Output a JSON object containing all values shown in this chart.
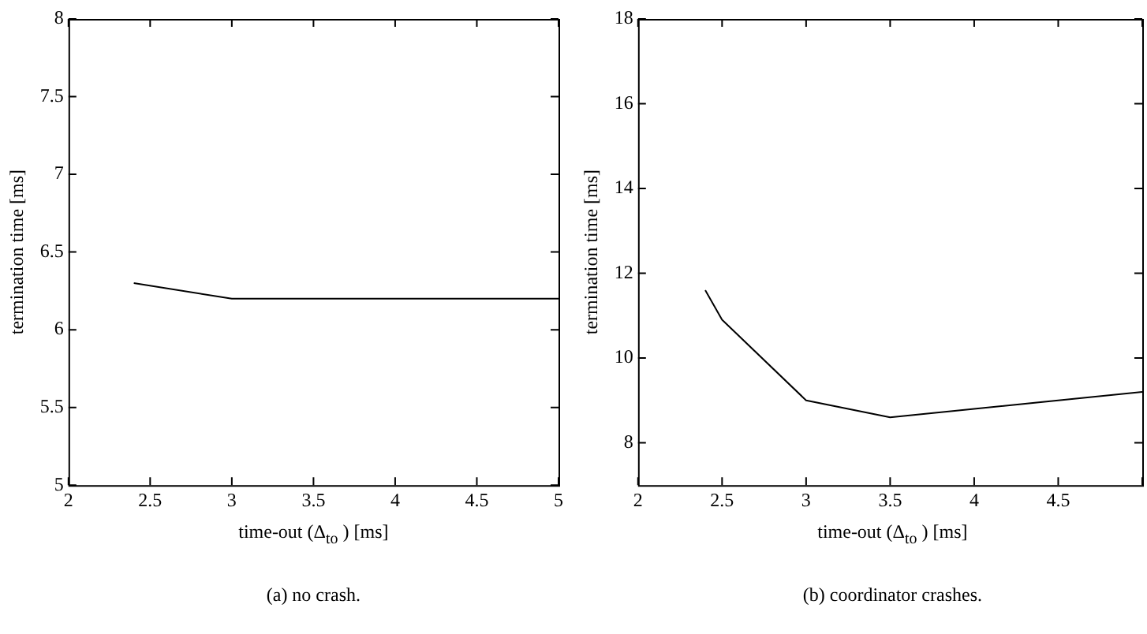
{
  "chart_data": [
    {
      "type": "line",
      "xlabel": "time-out (Δ$_{to}$ ) [ms]",
      "ylabel": "termination time [ms]",
      "annotations": [
        "(a) no crash."
      ],
      "x": [
        2.4,
        3,
        5
      ],
      "series": [
        {
          "color": "#000000",
          "values": [
            6.3,
            6.2,
            6.2
          ]
        }
      ],
      "xlim": [
        2,
        5
      ],
      "xticks": [
        2,
        2.5,
        3,
        3.5,
        4,
        4.5,
        5
      ],
      "ylim": [
        5,
        8
      ],
      "yticks": [
        5,
        5.5,
        6,
        6.5,
        7,
        7.5,
        8
      ],
      "grid": false,
      "legend": false,
      "marker": "none",
      "line_style": "solid"
    },
    {
      "type": "line",
      "xlabel": "time-out (Δ$_{to}$ ) [ms]",
      "ylabel": "termination time [ms]",
      "annotations": [
        "(b) coordinator crashes."
      ],
      "x": [
        2.4,
        2.5,
        3,
        3.5,
        4,
        4.5,
        5
      ],
      "series": [
        {
          "color": "#000000",
          "values": [
            11.6,
            10.9,
            9.0,
            8.6,
            8.8,
            9.0,
            9.2
          ]
        }
      ],
      "xlim": [
        2,
        5
      ],
      "xticks": [
        2,
        2.5,
        3,
        3.5,
        4,
        4.5,
        {
          "value": 5,
          "label": null
        }
      ],
      "ylim": [
        7,
        18
      ],
      "yticks": [
        8,
        10,
        12,
        14,
        16,
        18
      ],
      "grid": false,
      "legend": false,
      "marker": "none",
      "line_style": "solid"
    }
  ]
}
